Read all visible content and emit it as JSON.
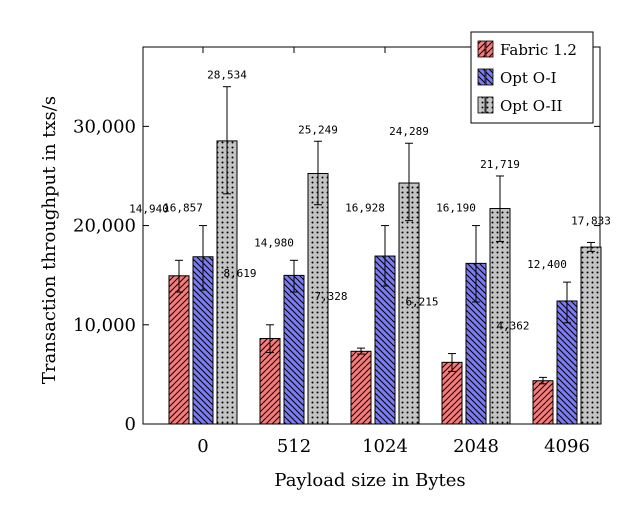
{
  "chart_data": {
    "type": "bar",
    "title": "",
    "xlabel": "Payload size in Bytes",
    "ylabel": "Transaction throughput in txs/s",
    "categories": [
      "0",
      "512",
      "1024",
      "2048",
      "4096"
    ],
    "ylim": [
      0,
      38000
    ],
    "yticks": [
      0,
      10000,
      20000,
      30000
    ],
    "ytick_labels": [
      "0",
      "10,000",
      "20,000",
      "30,000"
    ],
    "legend_position": "top-right",
    "series": [
      {
        "name": "Fabric 1.2",
        "color": "#f87a7a",
        "pattern": "north-east-lines",
        "values": [
          14940,
          8619,
          7328,
          6215,
          4362
        ],
        "labels": [
          "14,940",
          "8,619",
          "7,328",
          "6,215",
          "4,362"
        ],
        "err_low": [
          13300,
          7200,
          7050,
          5300,
          4050
        ],
        "err_high": [
          16500,
          10000,
          7650,
          7100,
          4700
        ]
      },
      {
        "name": "Opt O-I",
        "color": "#7b7bf7",
        "pattern": "north-west-lines",
        "values": [
          16857,
          14980,
          16928,
          16190,
          12400
        ],
        "labels": [
          "16,857",
          "14,980",
          "16,928",
          "16,190",
          "12,400"
        ],
        "err_low": [
          13500,
          13300,
          13900,
          12300,
          10200
        ],
        "err_high": [
          20000,
          16500,
          20000,
          20000,
          14300
        ]
      },
      {
        "name": "Opt O-II",
        "color": "#c4c4c4",
        "pattern": "dots",
        "values": [
          28534,
          25249,
          24289,
          21719,
          17833
        ],
        "labels": [
          "28,534",
          "25,249",
          "24,289",
          "21,719",
          "17,833"
        ],
        "err_low": [
          23200,
          22100,
          20500,
          18400,
          17400
        ],
        "err_high": [
          34000,
          28500,
          28300,
          25000,
          18300
        ]
      }
    ]
  }
}
